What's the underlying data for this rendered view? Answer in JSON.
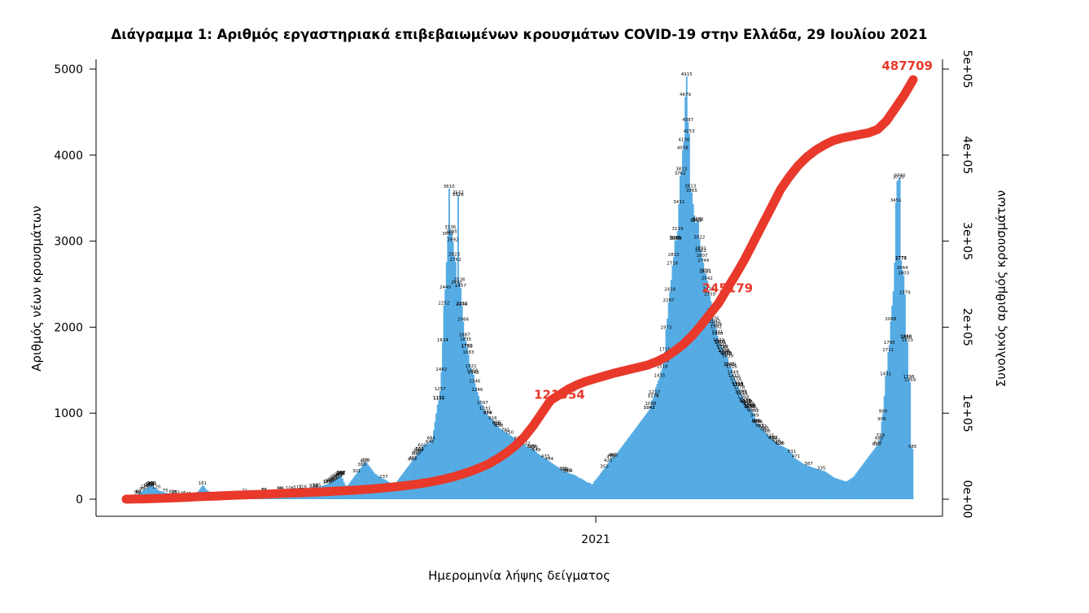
{
  "chart_data": {
    "type": "bar",
    "title": "Διάγραμμα 1: Αριθμός εργαστηριακά επιβεβαιωμένων κρουσμάτων COVID-19 στην Ελλάδα, 29 Ιουλίου 2021",
    "xlabel": "Ημερομηνία λήψης δείγματος",
    "ylabel": "Αριθμός νέων κρουσμάτων",
    "y2label": "Συνολικός αριθμός κρουσμάτων",
    "x_tick_label": "2021",
    "ylim": [
      0,
      5000
    ],
    "y_ticks": [
      "0",
      "1000",
      "2000",
      "3000",
      "4000",
      "5000"
    ],
    "y2lim": [
      0,
      500000
    ],
    "y2_ticks": [
      "0e+00",
      "1e+05",
      "2e+05",
      "3e+05",
      "4e+05",
      "5e+05"
    ],
    "grid": false,
    "bar_color": "#55abe3",
    "line_color": "#e8392b",
    "cumulative_annotations": [
      "121354",
      "245179",
      "487709"
    ],
    "series": [
      {
        "name": "Αριθμός νέων κρουσμάτων",
        "kind": "bars",
        "values": [
          10,
          12,
          14,
          18,
          22,
          28,
          35,
          45,
          50,
          60,
          70,
          80,
          95,
          110,
          118,
          125,
          130,
          140,
          150,
          160,
          155,
          140,
          130,
          120,
          110,
          100,
          95,
          90,
          85,
          80,
          75,
          72,
          70,
          68,
          65,
          62,
          60,
          58,
          55,
          53,
          52,
          50,
          49,
          48,
          46,
          45,
          44,
          42,
          40,
          41,
          43,
          45,
          50,
          60,
          70,
          85,
          100,
          120,
          140,
          161,
          150,
          130,
          110,
          100,
          90,
          85,
          80,
          78,
          75,
          72,
          70,
          68,
          66,
          65,
          64,
          63,
          62,
          61,
          60,
          60,
          60,
          60,
          61,
          62,
          63,
          64,
          65,
          66,
          67,
          68,
          69,
          70,
          71,
          72,
          73,
          74,
          75,
          76,
          77,
          78,
          79,
          80,
          81,
          82,
          83,
          84,
          85,
          86,
          87,
          88,
          89,
          90,
          91,
          92,
          93,
          94,
          95,
          96,
          97,
          98,
          99,
          100,
          101,
          102,
          103,
          104,
          105,
          106,
          107,
          108,
          109,
          110,
          111,
          112,
          113,
          114,
          115,
          116,
          117,
          118,
          119,
          120,
          121,
          122,
          124,
          126,
          128,
          130,
          135,
          140,
          145,
          150,
          155,
          160,
          165,
          170,
          175,
          180,
          190,
          200,
          210,
          220,
          230,
          240,
          250,
          260,
          270,
          280,
          240,
          200,
          170,
          150,
          160,
          180,
          200,
          220,
          240,
          260,
          280,
          300,
          320,
          340,
          360,
          380,
          400,
          420,
          430,
          420,
          400,
          380,
          360,
          340,
          320,
          300,
          290,
          280,
          270,
          260,
          250,
          240,
          237,
          230,
          220,
          210,
          200,
          190,
          180,
          170,
          175,
          180,
          200,
          220,
          240,
          260,
          280,
          300,
          320,
          340,
          360,
          380,
          400,
          420,
          440,
          460,
          480,
          500,
          520,
          540,
          560,
          580,
          600,
          620,
          630,
          640,
          650,
          660,
          645,
          684,
          700,
          800,
          900,
          1000,
          1100,
          1150,
          1257,
          1482,
          1824,
          2252,
          2440,
          2756,
          3063,
          3610,
          3136,
          3085,
          2992,
          2823,
          2762,
          2497,
          3542,
          2526,
          2457,
          2251,
          2066,
          1887,
          1835,
          1760,
          1683,
          1574,
          1521,
          1468,
          1448,
          1350,
          1300,
          1246,
          1200,
          1150,
          1100,
          1097,
          1050,
          1031,
          1000,
          980,
          965,
          950,
          935,
          920,
          900,
          880,
          860,
          846,
          830,
          820,
          810,
          800,
          790,
          780,
          770,
          760,
          750,
          740,
          730,
          720,
          710,
          700,
          690,
          680,
          670,
          660,
          650,
          640,
          630,
          622,
          610,
          600,
          590,
          586,
          589,
          573,
          560,
          549,
          530,
          520,
          510,
          500,
          490,
          480,
          473,
          460,
          450,
          444,
          430,
          420,
          410,
          400,
          390,
          380,
          370,
          360,
          350,
          340,
          330,
          322,
          316,
          310,
          304,
          298,
          294,
          290,
          286,
          280,
          270,
          260,
          250,
          244,
          240,
          230,
          220,
          210,
          200,
          194,
          190,
          187,
          169,
          180,
          207,
          224,
          240,
          260,
          280,
          300,
          320,
          340,
          353,
          380,
          400,
          425,
          450,
          470,
          487,
          488,
          500,
          520,
          540,
          560,
          580,
          600,
          622,
          640,
          660,
          680,
          700,
          720,
          740,
          760,
          780,
          800,
          820,
          840,
          860,
          880,
          900,
          920,
          940,
          960,
          980,
          1000,
          1020,
          1042,
          1088,
          1150,
          1177,
          1217,
          1300,
          1340,
          1380,
          1415,
          1480,
          1518,
          1583,
          1715,
          1973,
          2100,
          2287,
          2416,
          2550,
          2716,
          2815,
          3013,
          3004,
          3119,
          3432,
          3762,
          3813,
          4058,
          4156,
          4679,
          4915,
          4387,
          4253,
          3613,
          3565,
          3432,
          3300,
          3213,
          3221,
          3231,
          3022,
          2891,
          2807,
          2749,
          2630,
          2621,
          2542,
          2419,
          2359,
          2300,
          2171,
          2076,
          2042,
          1982,
          1900,
          1822,
          1805,
          1771,
          1746,
          1700,
          1681,
          1675,
          1639,
          1545,
          1539,
          1516,
          1449,
          1410,
          1379,
          1337,
          1305,
          1278,
          1230,
          1215,
          1169,
          1129,
          1119,
          1107,
          1087,
          1055,
          1047,
          1023,
          1002,
          949,
          885,
          879,
          874,
          833,
          830,
          822,
          797,
          787,
          766,
          750,
          740,
          715,
          700,
          689,
          687,
          670,
          656,
          645,
          628,
          626,
          620,
          612,
          605,
          598,
          590,
          580,
          570,
          540,
          531,
          500,
          480,
          471,
          460,
          450,
          440,
          430,
          420,
          410,
          404,
          400,
          390,
          387,
          382,
          375,
          370,
          365,
          360,
          355,
          350,
          345,
          340,
          335,
          330,
          329,
          320,
          310,
          300,
          290,
          280,
          270,
          260,
          250,
          245,
          240,
          235,
          230,
          225,
          220,
          215,
          210,
          209,
          212,
          220,
          230,
          240,
          250,
          260,
          280,
          300,
          320,
          340,
          360,
          380,
          400,
          420,
          440,
          460,
          480,
          500,
          520,
          540,
          560,
          580,
          600,
          615,
          627,
          685,
          719,
          906,
          999,
          1200,
          1431,
          1500,
          1711,
          1795,
          2068,
          2251,
          2416,
          2750,
          3451,
          3700,
          3720,
          3740,
          2777,
          2664,
          2600,
          2379,
          1866,
          1823,
          1398,
          1359,
          600,
          585
        ],
        "labels": [
          "2008",
          "1700",
          "148",
          "116",
          "106",
          "98",
          "95",
          "86",
          "86",
          "118",
          "112",
          "160",
          "161",
          "75",
          "71",
          "62",
          "53",
          "50",
          "46",
          "40",
          "58",
          "59",
          "60",
          "99",
          "120",
          "126",
          "128",
          "130",
          "135",
          "140",
          "150",
          "155",
          "160",
          "173",
          "175",
          "180",
          "190",
          "200",
          "210",
          "237",
          "232",
          "268",
          "282",
          "281",
          "242",
          "221",
          "250",
          "273",
          "277",
          "262",
          "304",
          "307",
          "301",
          "322",
          "331",
          "335",
          "353",
          "380",
          "387",
          "420",
          "425",
          "430",
          "440",
          "444",
          "456",
          "470",
          "471",
          "473",
          "487",
          "488",
          "500",
          "520",
          "531",
          "540",
          "549",
          "555",
          "560",
          "573",
          "585",
          "586",
          "589",
          "600",
          "615",
          "622",
          "626",
          "627",
          "628",
          "645",
          "656",
          "680",
          "684",
          "685",
          "687",
          "689",
          "715",
          "719",
          "750",
          "766",
          "781",
          "787",
          "797",
          "822",
          "830",
          "833",
          "846",
          "865",
          "866",
          "874",
          "879",
          "884",
          "885",
          "906",
          "916",
          "949",
          "978",
          "984",
          "999",
          "1002",
          "1023",
          "1031",
          "1041",
          "1042",
          "1047",
          "1055",
          "1060",
          "1068",
          "1069",
          "1087",
          "1088",
          "1097",
          "1107",
          "1113",
          "1117",
          "1119",
          "1129",
          "1150",
          "1152",
          "1169",
          "1176",
          "1177",
          "1211",
          "1215",
          "1217",
          "1230",
          "1246",
          "1257",
          "1278",
          "1305",
          "1314",
          "1315",
          "1337",
          "1346",
          "1359",
          "1379",
          "1398",
          "1410",
          "1415",
          "1431",
          "1448",
          "1449",
          "1468",
          "1482",
          "1516",
          "1518",
          "1521",
          "1539",
          "1545",
          "1583",
          "1594",
          "1639",
          "1662",
          "1675",
          "1681",
          "1683",
          "1704",
          "1711",
          "1715",
          "1746",
          "1750",
          "1755",
          "1760",
          "1771",
          "1795",
          "1801",
          "1805",
          "1822",
          "1823",
          "1824",
          "1835",
          "1860",
          "1866",
          "1887",
          "1900",
          "1921",
          "1973",
          "1982",
          "2042",
          "2066",
          "2068",
          "2076",
          "2171",
          "2240",
          "2251",
          "2252",
          "2287",
          "2359",
          "2379",
          "2416",
          "2419",
          "2440",
          "2457",
          "2497",
          "2526",
          "2542",
          "2603",
          "2621",
          "2630",
          "2664",
          "2716",
          "2749",
          "2762",
          "2776",
          "2777",
          "2807",
          "2815",
          "2823",
          "2862",
          "2891",
          "2992",
          "3004",
          "3009",
          "3013",
          "3022",
          "3063",
          "3085",
          "3119",
          "3136",
          "3213",
          "3221",
          "3231",
          "3432",
          "3451",
          "3516",
          "3542",
          "3565",
          "3610",
          "3613",
          "3720",
          "3740",
          "3762",
          "3813",
          "4058",
          "4156",
          "4253",
          "4387",
          "4679",
          "4915"
        ]
      },
      {
        "name": "Συνολικός αριθμός κρουσμάτων",
        "kind": "line",
        "axis": "right",
        "values": [
          0,
          200,
          400,
          700,
          1000,
          1400,
          1800,
          2300,
          2800,
          3200,
          3600,
          4000,
          4400,
          4800,
          5200,
          5600,
          6000,
          6400,
          6800,
          7200,
          7600,
          8000,
          8500,
          9000,
          9500,
          10000,
          10600,
          11300,
          12100,
          13000,
          14000,
          15100,
          16300,
          17700,
          19300,
          21200,
          23400,
          26000,
          29000,
          32500,
          36500,
          41000,
          47000,
          54000,
          62000,
          72000,
          85000,
          100000,
          115000,
          121354,
          128000,
          133000,
          137000,
          140000,
          143000,
          146000,
          148500,
          151000,
          153500,
          156000,
          160000,
          165000,
          172000,
          180000,
          190000,
          202000,
          215000,
          228000,
          245179,
          262000,
          280000,
          300000,
          320000,
          340000,
          360000,
          375000,
          388000,
          398000,
          406000,
          412000,
          417000,
          420000,
          422000,
          424000,
          426000,
          430000,
          440000,
          455000,
          470000,
          487709
        ]
      }
    ]
  }
}
